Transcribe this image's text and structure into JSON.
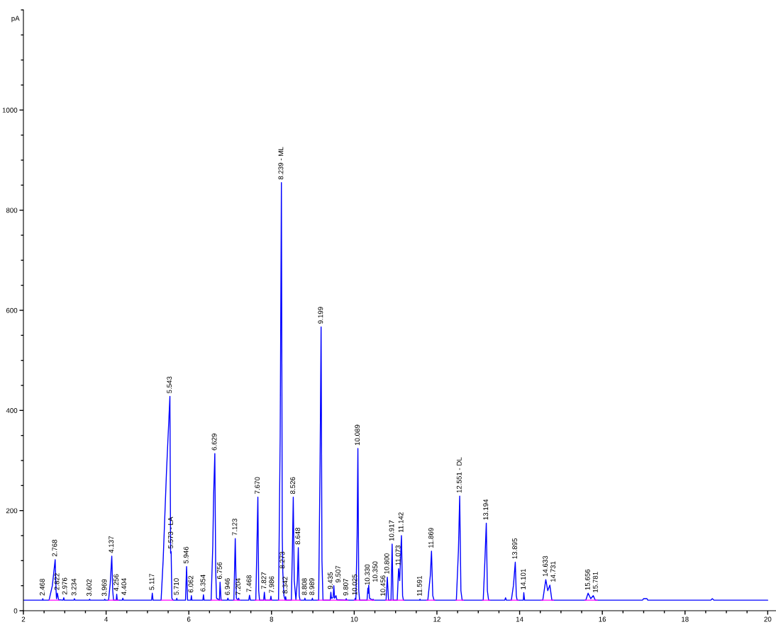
{
  "chart_data": {
    "type": "line",
    "ylabel": "pA",
    "xlim": [
      2,
      20.2
    ],
    "ylim": [
      0,
      1200
    ],
    "xticks": [
      2,
      {
        "value": 2.5,
        "label": null
      },
      {
        "value": 3,
        "label": null
      },
      {
        "value": 3.5,
        "label": null
      },
      4,
      {
        "value": 4.5,
        "label": null
      },
      {
        "value": 5,
        "label": null
      },
      {
        "value": 5.5,
        "label": null
      },
      6,
      {
        "value": 6.5,
        "label": null
      },
      {
        "value": 7,
        "label": null
      },
      {
        "value": 7.5,
        "label": null
      },
      8,
      {
        "value": 8.5,
        "label": null
      },
      {
        "value": 9,
        "label": null
      },
      {
        "value": 9.5,
        "label": null
      },
      10,
      {
        "value": 10.5,
        "label": null
      },
      {
        "value": 11,
        "label": null
      },
      {
        "value": 11.5,
        "label": null
      },
      12,
      {
        "value": 12.5,
        "label": null
      },
      {
        "value": 13,
        "label": null
      },
      {
        "value": 13.5,
        "label": null
      },
      14,
      {
        "value": 14.5,
        "label": null
      },
      {
        "value": 15,
        "label": null
      },
      {
        "value": 15.5,
        "label": null
      },
      16,
      {
        "value": 16.5,
        "label": null
      },
      {
        "value": 17,
        "label": null
      },
      {
        "value": 17.5,
        "label": null
      },
      18,
      {
        "value": 18.5,
        "label": null
      },
      {
        "value": 19,
        "label": null
      },
      {
        "value": 19.5,
        "label": null
      },
      20
    ],
    "yticks": [
      0,
      {
        "value": 50,
        "label": null
      },
      {
        "value": 100,
        "label": null
      },
      {
        "value": 150,
        "label": null
      },
      200,
      {
        "value": 250,
        "label": null
      },
      {
        "value": 300,
        "label": null
      },
      {
        "value": 350,
        "label": null
      },
      400,
      {
        "value": 450,
        "label": null
      },
      {
        "value": 500,
        "label": null
      },
      {
        "value": 550,
        "label": null
      },
      600,
      {
        "value": 650,
        "label": null
      },
      {
        "value": 700,
        "label": null
      },
      {
        "value": 750,
        "label": null
      },
      800,
      {
        "value": 850,
        "label": null
      },
      {
        "value": 900,
        "label": null
      },
      {
        "value": 950,
        "label": null
      },
      1000,
      {
        "value": 1050,
        "label": null
      },
      {
        "value": 1100,
        "label": null
      },
      {
        "value": 1150,
        "label": null
      },
      {
        "value": 1200,
        "label": null
      }
    ],
    "series": [
      {
        "color": "#0000ff",
        "x": [
          2.0,
          2.46,
          2.468,
          2.48,
          2.62,
          2.7,
          2.768,
          2.79,
          2.8,
          2.822,
          2.85,
          2.96,
          2.976,
          2.99,
          3.22,
          3.234,
          3.25,
          3.59,
          3.602,
          3.615,
          3.955,
          3.969,
          3.98,
          4.06,
          4.1,
          4.137,
          4.16,
          4.18,
          4.245,
          4.256,
          4.27,
          4.39,
          4.404,
          4.42,
          5.1,
          5.117,
          5.135,
          5.33,
          5.38,
          5.46,
          5.543,
          5.56,
          5.573,
          5.59,
          5.62,
          5.7,
          5.71,
          5.72,
          5.92,
          5.946,
          5.97,
          6.05,
          6.062,
          6.075,
          6.34,
          6.354,
          6.37,
          6.54,
          6.58,
          6.6,
          6.629,
          6.65,
          6.67,
          6.74,
          6.756,
          6.78,
          6.93,
          6.946,
          6.96,
          7.09,
          7.123,
          7.15,
          7.19,
          7.204,
          7.22,
          7.45,
          7.468,
          7.49,
          7.62,
          7.645,
          7.67,
          7.69,
          7.71,
          7.81,
          7.827,
          7.845,
          7.97,
          7.986,
          8.0,
          8.17,
          8.21,
          8.239,
          8.26,
          8.273,
          8.3,
          8.33,
          8.342,
          8.355,
          8.48,
          8.505,
          8.526,
          8.55,
          8.59,
          8.625,
          8.648,
          8.67,
          8.69,
          8.795,
          8.808,
          8.82,
          8.975,
          8.989,
          9.0,
          9.14,
          9.175,
          9.199,
          9.22,
          9.245,
          9.42,
          9.435,
          9.45,
          9.49,
          9.507,
          9.525,
          9.56,
          9.58,
          9.795,
          9.807,
          9.82,
          10.01,
          10.025,
          10.04,
          10.07,
          10.089,
          10.11,
          10.13,
          10.31,
          10.33,
          10.34,
          10.35,
          10.37,
          10.445,
          10.456,
          10.47,
          10.77,
          10.8,
          10.83,
          10.89,
          10.917,
          10.94,
          11.04,
          11.073,
          11.1,
          11.142,
          11.17,
          11.19,
          11.58,
          11.591,
          11.6,
          11.78,
          11.84,
          11.869,
          11.9,
          11.93,
          12.47,
          12.52,
          12.551,
          12.58,
          12.61,
          13.12,
          13.16,
          13.194,
          13.22,
          13.25,
          13.64,
          13.66,
          13.68,
          13.8,
          13.85,
          13.895,
          13.92,
          13.94,
          14.09,
          14.101,
          14.12,
          14.56,
          14.633,
          14.68,
          14.731,
          14.78,
          15.6,
          15.656,
          15.72,
          15.781,
          15.83,
          16.97,
          17.0,
          17.08,
          17.1,
          18.62,
          18.66,
          18.7,
          20.0
        ],
        "values": [
          21,
          21,
          24,
          21,
          21,
          50,
          102,
          40,
          24,
          35,
          22,
          21,
          26,
          21,
          21,
          24,
          21,
          21,
          23,
          21,
          21,
          23,
          21,
          21,
          55,
          109,
          40,
          21,
          21,
          33,
          21,
          21,
          25,
          21,
          21,
          35,
          21,
          21,
          102,
          277,
          428,
          115,
          118,
          25,
          21,
          21,
          25,
          21,
          21,
          88,
          21,
          21,
          30,
          21,
          21,
          32,
          21,
          21,
          130,
          230,
          314,
          80,
          25,
          21,
          57,
          21,
          21,
          25,
          21,
          21,
          144,
          25,
          21,
          25,
          21,
          21,
          31,
          21,
          21,
          120,
          227,
          40,
          21,
          21,
          37,
          21,
          21,
          29,
          21,
          21,
          350,
          855,
          150,
          78,
          30,
          21,
          28,
          21,
          21,
          120,
          227,
          60,
          22,
          60,
          126,
          30,
          21,
          21,
          25,
          21,
          21,
          25,
          21,
          21,
          300,
          567,
          100,
          21,
          21,
          37,
          25,
          26,
          50,
          25,
          30,
          22,
          21,
          24,
          21,
          21,
          25,
          21,
          150,
          324,
          40,
          21,
          21,
          45,
          35,
          51,
          25,
          21,
          23,
          21,
          21,
          67,
          21,
          21,
          133,
          21,
          21,
          84,
          60,
          150,
          30,
          21,
          21,
          23,
          21,
          21,
          70,
          119,
          30,
          21,
          21,
          120,
          229,
          40,
          21,
          21,
          100,
          175,
          40,
          21,
          21,
          26,
          21,
          21,
          50,
          97,
          30,
          21,
          21,
          36,
          21,
          21,
          62,
          40,
          51,
          21,
          21,
          35,
          24,
          30,
          21,
          21,
          24,
          24,
          21,
          21,
          24,
          21,
          21
        ]
      },
      {
        "color": "#ff00ff",
        "x": [
          2.62,
          2.86,
          3.5,
          4.05,
          4.3,
          5.0,
          5.33,
          5.62,
          6.2,
          6.53,
          6.8,
          6.9,
          7.08,
          7.24,
          7.4,
          7.6,
          8.01,
          8.1,
          8.16,
          8.7,
          8.9,
          9.12,
          9.85,
          9.9,
          10.0,
          10.48,
          10.6,
          10.76,
          11.2,
          11.5,
          11.75,
          11.95,
          12.2,
          12.46,
          12.64,
          12.9,
          13.1,
          13.28,
          13.5,
          13.78,
          13.97,
          14.3,
          14.52,
          14.82,
          15.2,
          15.58,
          15.88
        ],
        "values": [
          21,
          21,
          null,
          21,
          21,
          null,
          21,
          21,
          null,
          21,
          21,
          null,
          21,
          21,
          null,
          21,
          21,
          null,
          21,
          21,
          null,
          21,
          21,
          null,
          21,
          21,
          null,
          21,
          21,
          null,
          21,
          21,
          null,
          21,
          21,
          null,
          21,
          21,
          null,
          21,
          21,
          null,
          21,
          21,
          null,
          21,
          21
        ]
      }
    ],
    "annotations": [
      {
        "text": "2.468",
        "x": 2.468,
        "y": 24
      },
      {
        "text": "2.768",
        "x": 2.768,
        "y": 102
      },
      {
        "text": "2.822",
        "x": 2.822,
        "y": 35
      },
      {
        "text": "2.976",
        "x": 2.976,
        "y": 26
      },
      {
        "text": "3.234",
        "x": 3.234,
        "y": 24
      },
      {
        "text": "3.602",
        "x": 3.602,
        "y": 23
      },
      {
        "text": "3.969",
        "x": 3.969,
        "y": 23
      },
      {
        "text": "4.137",
        "x": 4.137,
        "y": 109
      },
      {
        "text": "4.256",
        "x": 4.256,
        "y": 33
      },
      {
        "text": "4.404",
        "x": 4.404,
        "y": 25
      },
      {
        "text": "5.117",
        "x": 5.117,
        "y": 35
      },
      {
        "text": "5.543",
        "x": 5.543,
        "y": 428
      },
      {
        "text": "5.573 - LA",
        "x": 5.573,
        "y": 118
      },
      {
        "text": "5.710",
        "x": 5.71,
        "y": 25
      },
      {
        "text": "5.946",
        "x": 5.946,
        "y": 88
      },
      {
        "text": "6.062",
        "x": 6.062,
        "y": 30
      },
      {
        "text": "6.354",
        "x": 6.354,
        "y": 32
      },
      {
        "text": "6.629",
        "x": 6.629,
        "y": 314
      },
      {
        "text": "6.756",
        "x": 6.756,
        "y": 57
      },
      {
        "text": "6.946",
        "x": 6.946,
        "y": 25
      },
      {
        "text": "7.123",
        "x": 7.123,
        "y": 144
      },
      {
        "text": "7.204",
        "x": 7.204,
        "y": 25
      },
      {
        "text": "7.468",
        "x": 7.468,
        "y": 31
      },
      {
        "text": "7.670",
        "x": 7.67,
        "y": 227
      },
      {
        "text": "7.827",
        "x": 7.827,
        "y": 37
      },
      {
        "text": "7.986",
        "x": 7.986,
        "y": 29
      },
      {
        "text": "8.239 - ML",
        "x": 8.239,
        "y": 855
      },
      {
        "text": "8.273",
        "x": 8.273,
        "y": 78
      },
      {
        "text": "8.342",
        "x": 8.342,
        "y": 28
      },
      {
        "text": "8.526",
        "x": 8.526,
        "y": 227
      },
      {
        "text": "8.648",
        "x": 8.648,
        "y": 126
      },
      {
        "text": "8.808",
        "x": 8.808,
        "y": 25
      },
      {
        "text": "8.989",
        "x": 8.989,
        "y": 25
      },
      {
        "text": "9.199",
        "x": 9.199,
        "y": 567
      },
      {
        "text": "9.435",
        "x": 9.435,
        "y": 37
      },
      {
        "text": "9.507",
        "x": 9.507,
        "y": 50
      },
      {
        "text": "9.807",
        "x": 9.807,
        "y": 24
      },
      {
        "text": "10.025",
        "x": 10.025,
        "y": 25
      },
      {
        "text": "10.089",
        "x": 10.089,
        "y": 324
      },
      {
        "text": "10.330",
        "x": 10.33,
        "y": 45
      },
      {
        "text": "10.350",
        "x": 10.35,
        "y": 51
      },
      {
        "text": "10.456",
        "x": 10.456,
        "y": 23
      },
      {
        "text": "10.800",
        "x": 10.8,
        "y": 67
      },
      {
        "text": "10.917",
        "x": 10.917,
        "y": 133
      },
      {
        "text": "11.073",
        "x": 11.073,
        "y": 84
      },
      {
        "text": "11.142",
        "x": 11.142,
        "y": 150
      },
      {
        "text": "11.591",
        "x": 11.591,
        "y": 23
      },
      {
        "text": "11.869",
        "x": 11.869,
        "y": 119
      },
      {
        "text": "12.551 - DL",
        "x": 12.551,
        "y": 229
      },
      {
        "text": "13.194",
        "x": 13.194,
        "y": 175
      },
      {
        "text": "13.895",
        "x": 13.895,
        "y": 97
      },
      {
        "text": "14.101",
        "x": 14.101,
        "y": 36
      },
      {
        "text": "14.633",
        "x": 14.633,
        "y": 62
      },
      {
        "text": "14.731",
        "x": 14.731,
        "y": 51
      },
      {
        "text": "15.656",
        "x": 15.656,
        "y": 35
      },
      {
        "text": "15.781",
        "x": 15.781,
        "y": 30
      }
    ]
  }
}
